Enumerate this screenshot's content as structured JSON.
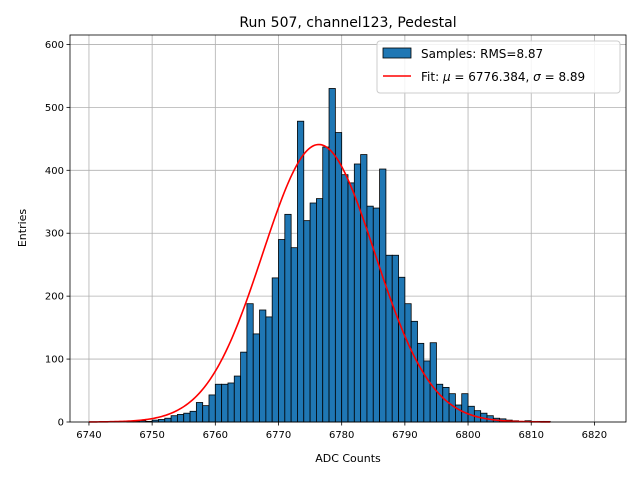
{
  "chart_data": {
    "type": "bar",
    "title": "Run 507, channel123, Pedestal",
    "xlabel": "ADC Counts",
    "ylabel": "Entries",
    "xlim": [
      6737,
      6825
    ],
    "ylim": [
      0,
      615
    ],
    "xticks": [
      6740,
      6750,
      6760,
      6770,
      6780,
      6790,
      6800,
      6810,
      6820
    ],
    "yticks": [
      0,
      100,
      200,
      300,
      400,
      500,
      600
    ],
    "grid": true,
    "legend_position": "top-right",
    "histogram": {
      "name": "Samples: RMS=8.87",
      "color": "#1f77b4",
      "edgecolor": "#000000",
      "bin_start": 6740,
      "bin_width": 1,
      "counts": [
        0,
        0,
        0,
        1,
        0,
        0,
        1,
        1,
        2,
        1,
        3,
        4,
        6,
        10,
        12,
        14,
        17,
        31,
        26,
        43,
        60,
        60,
        62,
        73,
        111,
        188,
        140,
        178,
        167,
        229,
        290,
        330,
        277,
        478,
        320,
        348,
        355,
        437,
        530,
        460,
        393,
        380,
        410,
        425,
        343,
        340,
        402,
        265,
        265,
        230,
        188,
        160,
        125,
        97,
        126,
        60,
        55,
        45,
        27,
        45,
        25,
        18,
        14,
        10,
        6,
        5,
        3,
        2,
        1,
        2,
        1,
        1,
        1,
        0,
        0,
        0,
        0,
        0,
        0,
        0,
        0,
        0,
        0,
        0
      ]
    },
    "fit": {
      "name_prefix": "Fit: ",
      "mu_symbol": "μ",
      "mu_value": " = 6776.384, ",
      "sigma_symbol": "σ",
      "sigma_value": " = 8.89",
      "color": "#ff0000",
      "mu": 6776.384,
      "sigma": 8.89,
      "amplitude": 441,
      "x_range": [
        6740,
        6813
      ]
    }
  }
}
